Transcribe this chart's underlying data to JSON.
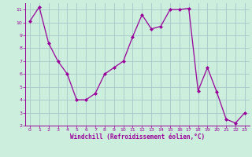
{
  "x": [
    0,
    1,
    2,
    3,
    4,
    5,
    6,
    7,
    8,
    9,
    10,
    11,
    12,
    13,
    14,
    15,
    16,
    17,
    18,
    19,
    20,
    21,
    22,
    23
  ],
  "y": [
    10.1,
    11.2,
    8.4,
    7.0,
    6.0,
    4.0,
    4.0,
    4.5,
    6.0,
    6.5,
    7.0,
    8.9,
    10.6,
    9.5,
    9.7,
    11.0,
    11.0,
    11.1,
    4.7,
    6.5,
    4.6,
    2.5,
    2.2,
    3.0
  ],
  "xlabel": "Windchill (Refroidissement éolien,°C)",
  "line_color": "#990099",
  "marker_color": "#990099",
  "bg_color": "#cceedd",
  "grid_color": "#aacccc",
  "tick_label_color": "#990099",
  "axis_label_color": "#990099",
  "ylim": [
    2,
    11.5
  ],
  "xlim": [
    -0.5,
    23.5
  ],
  "yticks": [
    2,
    3,
    4,
    5,
    6,
    7,
    8,
    9,
    10,
    11
  ],
  "xticks": [
    0,
    1,
    2,
    3,
    4,
    5,
    6,
    7,
    8,
    9,
    10,
    11,
    12,
    13,
    14,
    15,
    16,
    17,
    18,
    19,
    20,
    21,
    22,
    23
  ]
}
